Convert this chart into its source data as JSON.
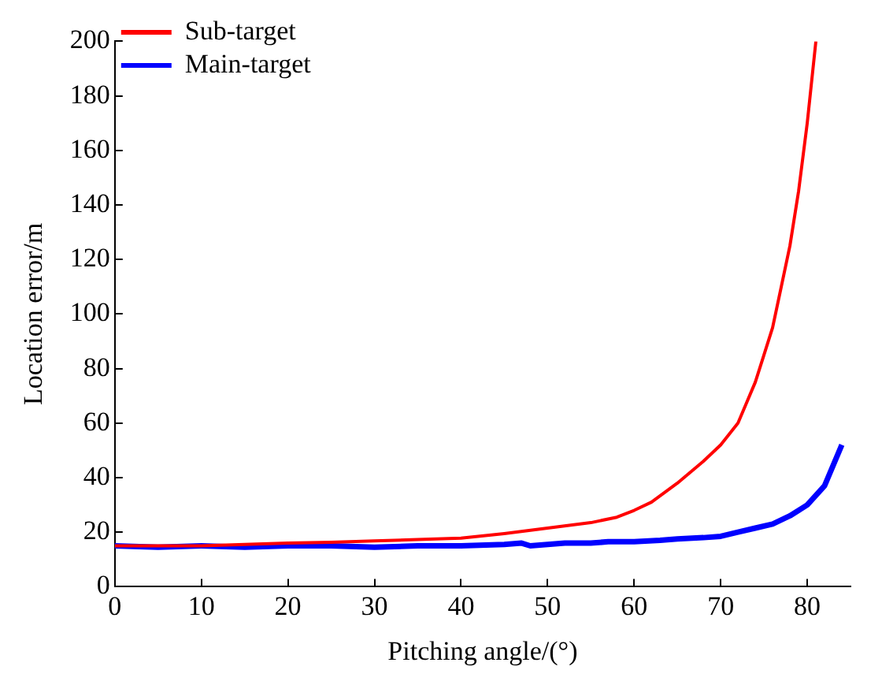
{
  "chart_data": {
    "type": "line",
    "xlabel": "Pitching angle/(°)",
    "ylabel": "Location error/m",
    "xlim": [
      0,
      85
    ],
    "xticks": [
      0,
      10,
      20,
      30,
      40,
      50,
      60,
      70,
      80
    ],
    "ylim": [
      0,
      200
    ],
    "yticks": [
      0,
      20,
      40,
      60,
      80,
      100,
      120,
      140,
      160,
      180,
      200
    ],
    "grid": false,
    "legend": "top left",
    "marker": "none",
    "line_style": "solid",
    "series": [
      {
        "name": "Sub-target",
        "color": "#ff0000",
        "x": [
          0,
          5,
          10,
          15,
          20,
          25,
          30,
          35,
          40,
          45,
          50,
          55,
          58,
          60,
          62,
          65,
          68,
          70,
          72,
          74,
          75,
          76,
          77,
          78,
          79,
          80,
          81
        ],
        "values": [
          15,
          15,
          15,
          15.5,
          16,
          16.3,
          16.8,
          17.3,
          17.8,
          19.5,
          21.5,
          23.5,
          25.5,
          28,
          31,
          38,
          46,
          52,
          60,
          75,
          85,
          95,
          110,
          125,
          145,
          170,
          200
        ]
      },
      {
        "name": "Main-target",
        "color": "#0000ff",
        "x": [
          0,
          5,
          10,
          15,
          20,
          25,
          30,
          35,
          40,
          45,
          47,
          48,
          50,
          52,
          55,
          57,
          60,
          63,
          65,
          68,
          70,
          72,
          74,
          76,
          78,
          80,
          82,
          84
        ],
        "values": [
          15,
          14.5,
          15,
          14.5,
          15,
          15,
          14.5,
          15,
          15,
          15.5,
          16,
          15,
          15.5,
          16,
          16,
          16.5,
          16.5,
          17,
          17.5,
          18,
          18.5,
          20,
          21.5,
          23,
          26,
          30,
          37,
          52
        ]
      }
    ]
  }
}
